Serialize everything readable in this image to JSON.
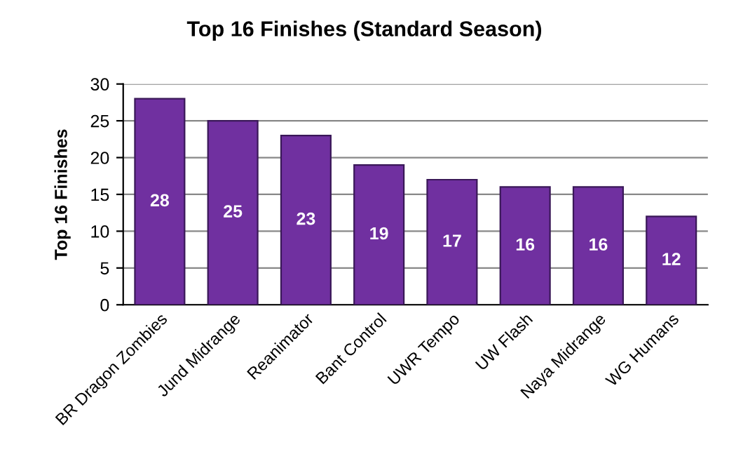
{
  "chart_data": {
    "type": "bar",
    "title": "Top 16 Finishes (Standard Season)",
    "ylabel": "Top 16 Finishes",
    "categories": [
      "BR Dragon Zombies",
      "Jund Midrange",
      "Reanimator",
      "Bant Control",
      "UWR Tempo",
      "UW Flash",
      "Naya Midrange",
      "WG Humans"
    ],
    "values": [
      28,
      25,
      23,
      19,
      17,
      16,
      16,
      12
    ],
    "color": "#7030a0",
    "ylim": [
      0,
      30
    ],
    "yticks": [
      0,
      5,
      10,
      15,
      20,
      25,
      30
    ],
    "grid": "y",
    "data_labels": true
  }
}
